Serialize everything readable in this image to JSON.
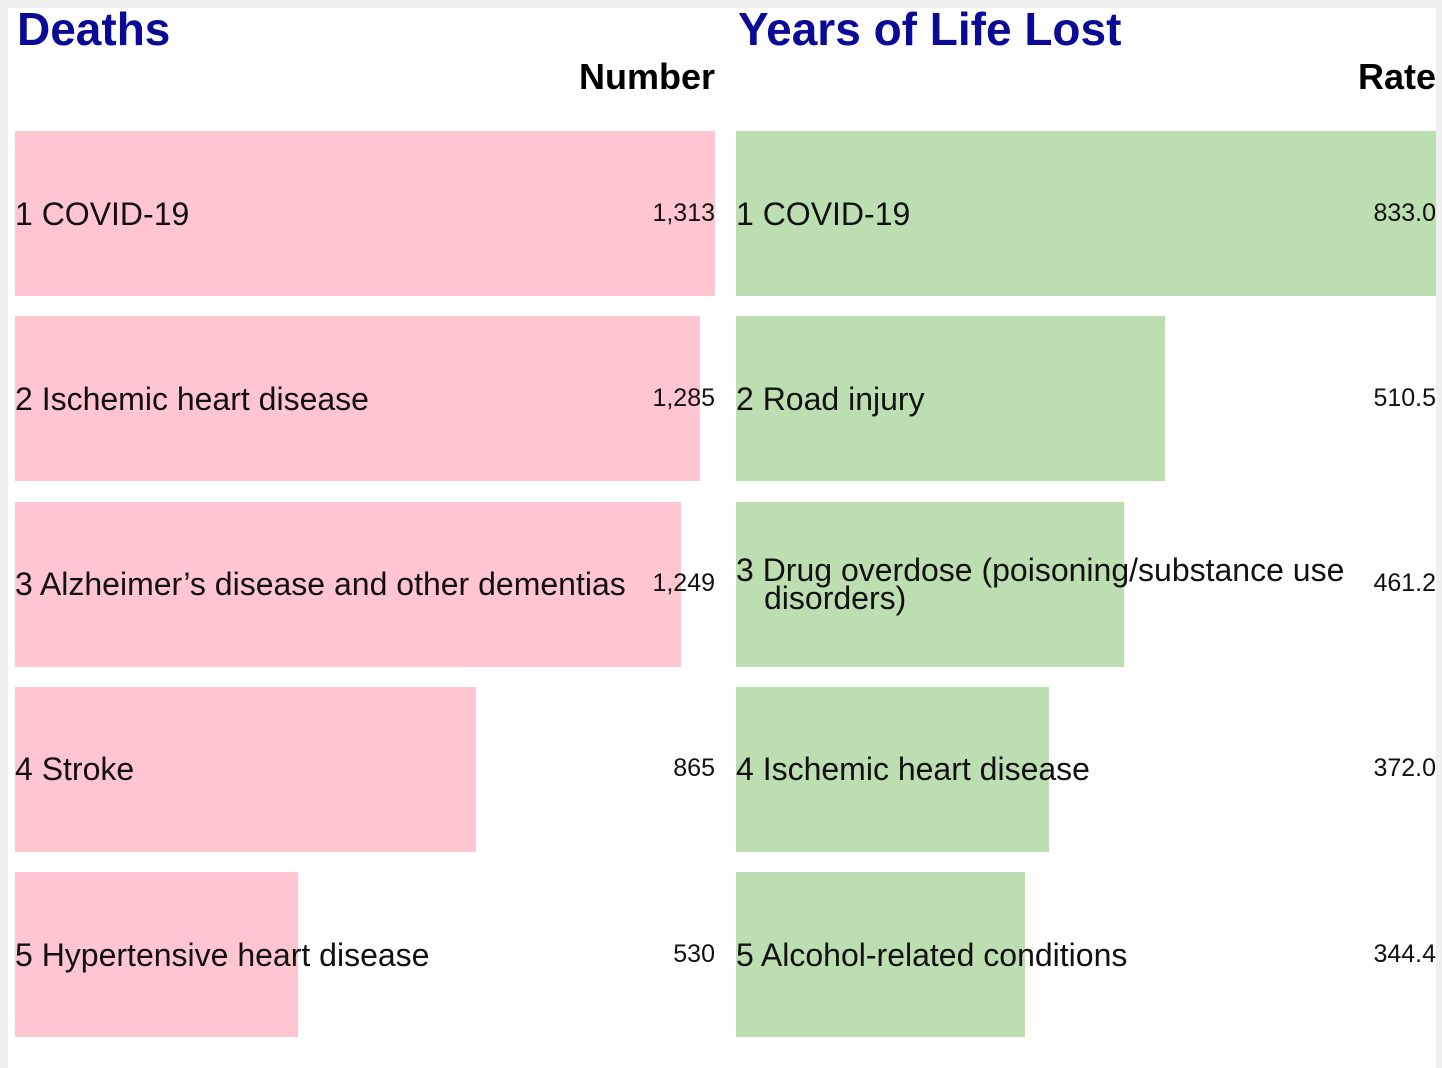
{
  "chart_data": [
    {
      "type": "bar",
      "orientation": "horizontal",
      "title": "Deaths",
      "value_header": "Number",
      "color": "#ffc5d0",
      "categories": [
        "1 COVID-19",
        "2 Ischemic heart disease",
        "3 Alzheimer’s disease and other dementias",
        "4 Stroke",
        "5 Hypertensive heart disease"
      ],
      "values": [
        1313,
        1285,
        1249,
        865,
        530
      ],
      "value_labels": [
        "1,313",
        "1,285",
        "1,249",
        "865",
        "530"
      ],
      "xlim": [
        0,
        1313
      ]
    },
    {
      "type": "bar",
      "orientation": "horizontal",
      "title": "Years of Life Lost",
      "value_header": "Rate",
      "color": "#bddeb1",
      "categories": [
        "1 COVID-19",
        "2 Road injury",
        "3 Drug overdose (poisoning/substance use disorders)",
        "4 Ischemic heart disease",
        "5 Alcohol-related conditions"
      ],
      "values": [
        833.0,
        510.5,
        461.2,
        372.0,
        344.4
      ],
      "value_labels": [
        "833.0",
        "510.5",
        "461.2",
        "372.0",
        "344.4"
      ],
      "xlim": [
        0,
        833.0
      ]
    }
  ]
}
